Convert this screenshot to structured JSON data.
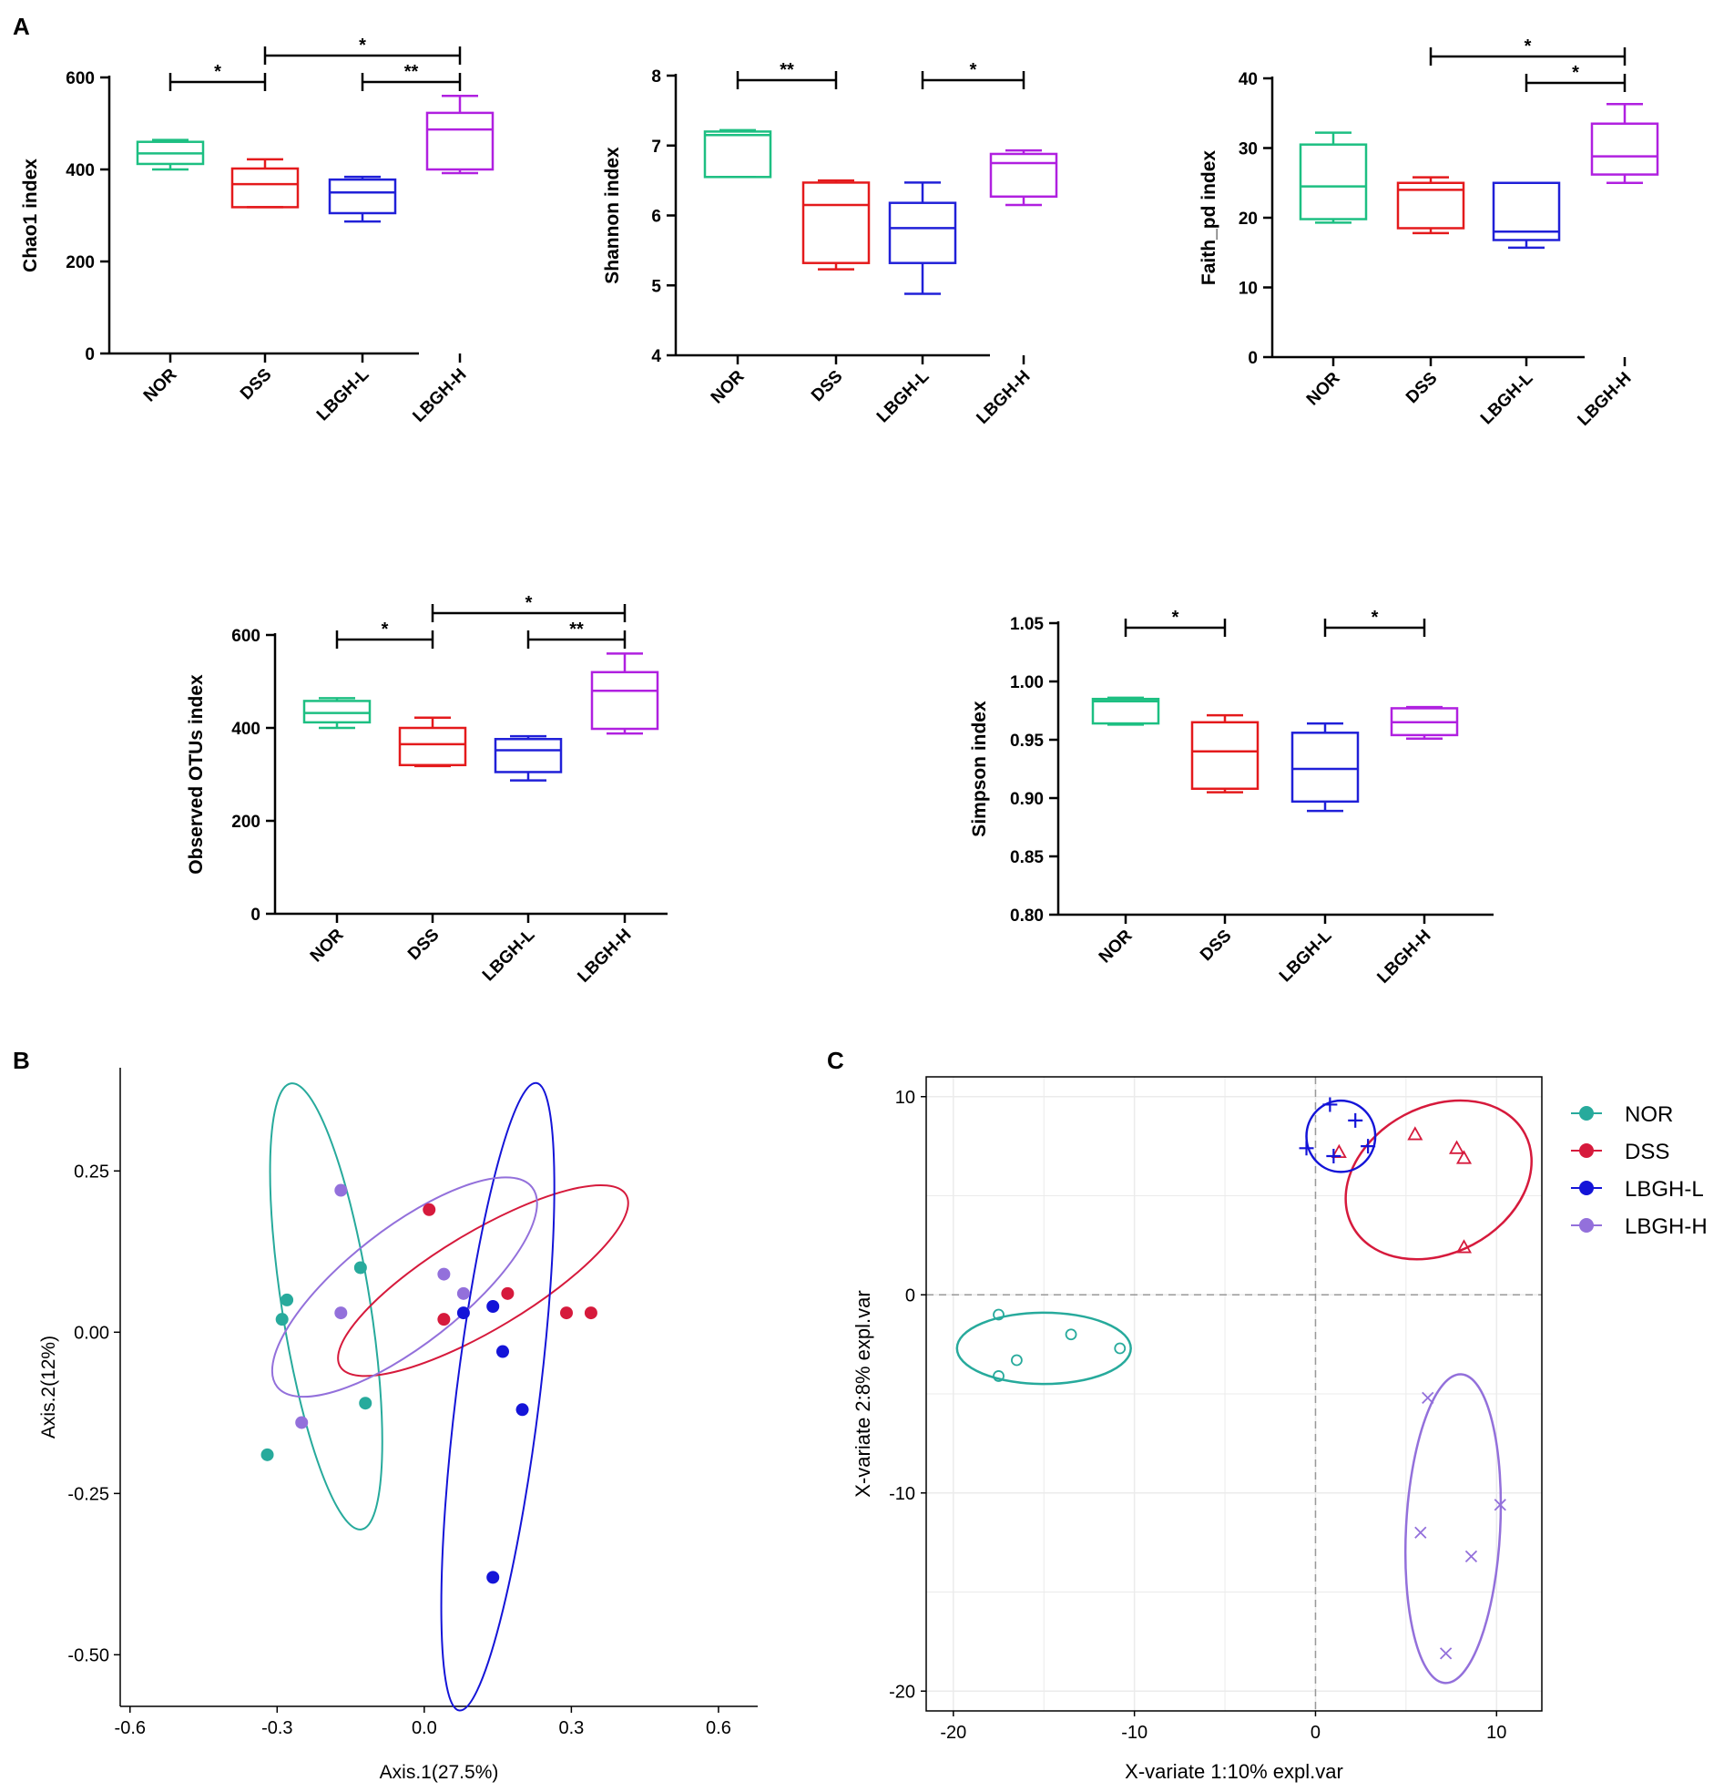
{
  "panel_labels": {
    "a": "A",
    "b": "B",
    "c": "C"
  },
  "group_colors": {
    "NOR": "#1dbf82",
    "DSS": "#e41a1c",
    "LBGH-L": "#2020d8",
    "LBGH-H": "#b020e0"
  },
  "pcoa_colors": {
    "NOR": "#27aa9c",
    "DSS": "#d61a3c",
    "LBGH-L": "#1414d8",
    "LBGH-H": "#9370db"
  },
  "chart_data": [
    {
      "type": "box",
      "title": "",
      "ylabel": "Chao1 index",
      "categories": [
        "NOR",
        "DSS",
        "LBGH-L",
        "LBGH-H"
      ],
      "ylim": [
        0,
        600
      ],
      "yticks": [
        0,
        200,
        400,
        600
      ],
      "boxes": [
        {
          "group": "NOR",
          "min": 400,
          "q1": 412,
          "median": 435,
          "q3": 460,
          "max": 464
        },
        {
          "group": "DSS",
          "min": 318,
          "q1": 318,
          "median": 368,
          "q3": 402,
          "max": 422
        },
        {
          "group": "LBGH-L",
          "min": 287,
          "q1": 305,
          "median": 350,
          "q3": 378,
          "max": 384
        },
        {
          "group": "LBGH-H",
          "min": 392,
          "q1": 400,
          "median": 487,
          "q3": 523,
          "max": 560
        }
      ],
      "significance": [
        {
          "from": "NOR",
          "to": "DSS",
          "label": "*",
          "level": 0
        },
        {
          "from": "LBGH-L",
          "to": "LBGH-H",
          "label": "**",
          "level": 0
        },
        {
          "from": "DSS",
          "to": "LBGH-H",
          "label": "*",
          "level": 1
        }
      ]
    },
    {
      "type": "box",
      "title": "",
      "ylabel": "Shannon index",
      "categories": [
        "NOR",
        "DSS",
        "LBGH-L",
        "LBGH-H"
      ],
      "ylim": [
        4,
        8
      ],
      "yticks": [
        4,
        5,
        6,
        7,
        8
      ],
      "boxes": [
        {
          "group": "NOR",
          "min": 6.55,
          "q1": 6.55,
          "median": 7.15,
          "q3": 7.2,
          "max": 7.22
        },
        {
          "group": "DSS",
          "min": 5.23,
          "q1": 5.32,
          "median": 6.15,
          "q3": 6.47,
          "max": 6.5
        },
        {
          "group": "LBGH-L",
          "min": 4.88,
          "q1": 5.32,
          "median": 5.82,
          "q3": 6.18,
          "max": 6.47
        },
        {
          "group": "LBGH-H",
          "min": 6.15,
          "q1": 6.27,
          "median": 6.75,
          "q3": 6.88,
          "max": 6.93
        }
      ],
      "significance": [
        {
          "from": "NOR",
          "to": "DSS",
          "label": "**",
          "level": 0
        },
        {
          "from": "LBGH-L",
          "to": "LBGH-H",
          "label": "*",
          "level": 0
        }
      ]
    },
    {
      "type": "box",
      "title": "",
      "ylabel": "Faith_pd index",
      "categories": [
        "NOR",
        "DSS",
        "LBGH-L",
        "LBGH-H"
      ],
      "ylim": [
        0,
        40
      ],
      "yticks": [
        0,
        10,
        20,
        30,
        40
      ],
      "boxes": [
        {
          "group": "NOR",
          "min": 19.3,
          "q1": 19.8,
          "median": 24.5,
          "q3": 30.5,
          "max": 32.2
        },
        {
          "group": "DSS",
          "min": 17.8,
          "q1": 18.5,
          "median": 24.0,
          "q3": 25.0,
          "max": 25.8
        },
        {
          "group": "LBGH-L",
          "min": 15.7,
          "q1": 16.8,
          "median": 18.0,
          "q3": 25.0,
          "max": 25.0
        },
        {
          "group": "LBGH-H",
          "min": 25.0,
          "q1": 26.2,
          "median": 28.8,
          "q3": 33.5,
          "max": 36.3
        }
      ],
      "significance": [
        {
          "from": "LBGH-L",
          "to": "LBGH-H",
          "label": "*",
          "level": 0
        },
        {
          "from": "DSS",
          "to": "LBGH-H",
          "label": "*",
          "level": 1
        }
      ]
    },
    {
      "type": "box",
      "title": "",
      "ylabel": "Observed OTUs index",
      "categories": [
        "NOR",
        "DSS",
        "LBGH-L",
        "LBGH-H"
      ],
      "ylim": [
        0,
        600
      ],
      "yticks": [
        0,
        200,
        400,
        600
      ],
      "boxes": [
        {
          "group": "NOR",
          "min": 400,
          "q1": 412,
          "median": 432,
          "q3": 458,
          "max": 464
        },
        {
          "group": "DSS",
          "min": 318,
          "q1": 320,
          "median": 365,
          "q3": 400,
          "max": 422
        },
        {
          "group": "LBGH-L",
          "min": 287,
          "q1": 305,
          "median": 352,
          "q3": 376,
          "max": 382
        },
        {
          "group": "LBGH-H",
          "min": 388,
          "q1": 398,
          "median": 480,
          "q3": 520,
          "max": 560
        }
      ],
      "significance": [
        {
          "from": "NOR",
          "to": "DSS",
          "label": "*",
          "level": 0
        },
        {
          "from": "LBGH-L",
          "to": "LBGH-H",
          "label": "**",
          "level": 0
        },
        {
          "from": "DSS",
          "to": "LBGH-H",
          "label": "*",
          "level": 1
        }
      ]
    },
    {
      "type": "box",
      "title": "",
      "ylabel": "Simpson index",
      "categories": [
        "NOR",
        "DSS",
        "LBGH-L",
        "LBGH-H"
      ],
      "ylim": [
        0.8,
        1.05
      ],
      "yticks": [
        0.8,
        0.85,
        0.9,
        0.95,
        1.0,
        1.05
      ],
      "ytick_labels": [
        "0.80",
        "0.85",
        "0.90",
        "0.95",
        "1.00",
        "1.05"
      ],
      "boxes": [
        {
          "group": "NOR",
          "min": 0.963,
          "q1": 0.964,
          "median": 0.983,
          "q3": 0.985,
          "max": 0.986
        },
        {
          "group": "DSS",
          "min": 0.905,
          "q1": 0.908,
          "median": 0.94,
          "q3": 0.965,
          "max": 0.971
        },
        {
          "group": "LBGH-L",
          "min": 0.889,
          "q1": 0.897,
          "median": 0.925,
          "q3": 0.956,
          "max": 0.964
        },
        {
          "group": "LBGH-H",
          "min": 0.951,
          "q1": 0.954,
          "median": 0.965,
          "q3": 0.977,
          "max": 0.978
        }
      ],
      "significance": [
        {
          "from": "NOR",
          "to": "DSS",
          "label": "*",
          "level": 0
        },
        {
          "from": "LBGH-L",
          "to": "LBGH-H",
          "label": "*",
          "level": 0
        }
      ]
    },
    {
      "type": "scatter",
      "title": "",
      "xlabel": "Axis.1(27.5%)",
      "ylabel": "Axis.2(12%)",
      "xlim": [
        -0.62,
        0.68
      ],
      "ylim": [
        -0.58,
        0.41
      ],
      "xticks": [
        -0.6,
        -0.3,
        0.0,
        0.3,
        0.6
      ],
      "xtick_labels": [
        "-0.6",
        "-0.3",
        "0.0",
        "0.3",
        "0.6"
      ],
      "yticks": [
        -0.5,
        -0.25,
        0.0,
        0.25
      ],
      "ytick_labels": [
        "-0.50",
        "-0.25",
        "0.00",
        "0.25"
      ],
      "series": [
        {
          "name": "NOR",
          "points": [
            [
              -0.13,
              0.1
            ],
            [
              -0.28,
              0.05
            ],
            [
              -0.29,
              0.02
            ],
            [
              -0.12,
              -0.11
            ],
            [
              -0.32,
              -0.19
            ]
          ]
        },
        {
          "name": "DSS",
          "points": [
            [
              0.01,
              0.19
            ],
            [
              0.17,
              0.06
            ],
            [
              0.29,
              0.03
            ],
            [
              0.34,
              0.03
            ],
            [
              0.04,
              0.02
            ]
          ]
        },
        {
          "name": "LBGH-L",
          "points": [
            [
              0.08,
              0.03
            ],
            [
              0.14,
              0.04
            ],
            [
              0.16,
              -0.03
            ],
            [
              0.2,
              -0.12
            ],
            [
              0.14,
              -0.38
            ]
          ]
        },
        {
          "name": "LBGH-H",
          "points": [
            [
              -0.17,
              0.22
            ],
            [
              0.04,
              0.09
            ],
            [
              0.08,
              0.06
            ],
            [
              -0.17,
              0.03
            ],
            [
              -0.25,
              -0.14
            ]
          ]
        }
      ],
      "ellipses": [
        {
          "name": "NOR",
          "cx": -0.2,
          "cy": 0.04,
          "rx": 0.09,
          "ry": 0.35,
          "angle_deg": -9
        },
        {
          "name": "DSS",
          "cx": 0.12,
          "cy": 0.08,
          "rx": 0.34,
          "ry": 0.075,
          "angle_deg": -31
        },
        {
          "name": "LBGH-L",
          "cx": 0.15,
          "cy": -0.1,
          "rx": 0.085,
          "ry": 0.49,
          "angle_deg": 7
        },
        {
          "name": "LBGH-H",
          "cx": -0.04,
          "cy": 0.07,
          "rx": 0.33,
          "ry": 0.09,
          "angle_deg": -38
        }
      ]
    },
    {
      "type": "scatter",
      "title": "",
      "xlabel": "X-variate 1:10% expl.var",
      "ylabel": "X-variate 2:8% expl.var",
      "xlim": [
        -21.5,
        12.5
      ],
      "ylim": [
        -21,
        11
      ],
      "xticks": [
        -20,
        -10,
        0,
        10
      ],
      "yticks": [
        -20,
        -10,
        0,
        10
      ],
      "grid": true,
      "reference_lines": {
        "x": 0,
        "y": 0
      },
      "legend": {
        "position": "right",
        "entries": [
          "NOR",
          "DSS",
          "LBGH-L",
          "LBGH-H"
        ]
      },
      "series": [
        {
          "name": "NOR",
          "marker": "circle-open",
          "points": [
            [
              -17.5,
              -1.0
            ],
            [
              -13.5,
              -2.0
            ],
            [
              -10.8,
              -2.7
            ],
            [
              -16.5,
              -3.3
            ],
            [
              -17.5,
              -4.1
            ]
          ]
        },
        {
          "name": "DSS",
          "marker": "triangle-open",
          "points": [
            [
              5.5,
              8.1
            ],
            [
              7.8,
              7.4
            ],
            [
              8.2,
              6.9
            ],
            [
              1.3,
              7.2
            ],
            [
              8.2,
              2.4
            ]
          ]
        },
        {
          "name": "LBGH-L",
          "marker": "plus",
          "points": [
            [
              0.8,
              9.6
            ],
            [
              2.2,
              8.8
            ],
            [
              -0.5,
              7.4
            ],
            [
              1.0,
              7.0
            ],
            [
              2.9,
              7.5
            ]
          ]
        },
        {
          "name": "LBGH-H",
          "marker": "cross",
          "points": [
            [
              6.2,
              -5.2
            ],
            [
              10.2,
              -10.6
            ],
            [
              5.8,
              -12.0
            ],
            [
              8.6,
              -13.2
            ],
            [
              7.2,
              -18.1
            ]
          ]
        }
      ],
      "ellipses": [
        {
          "name": "NOR",
          "cx": -15.0,
          "cy": -2.7,
          "rx": 4.8,
          "ry": 1.8,
          "angle_deg": 0
        },
        {
          "name": "DSS",
          "cx": 6.8,
          "cy": 5.8,
          "rx": 5.4,
          "ry": 3.7,
          "angle_deg": 28
        },
        {
          "name": "LBGH-L",
          "cx": 1.4,
          "cy": 8.0,
          "rx": 1.9,
          "ry": 1.8,
          "angle_deg": 0
        },
        {
          "name": "LBGH-H",
          "cx": 7.6,
          "cy": -11.8,
          "rx": 2.6,
          "ry": 7.8,
          "angle_deg": -3
        }
      ]
    }
  ]
}
